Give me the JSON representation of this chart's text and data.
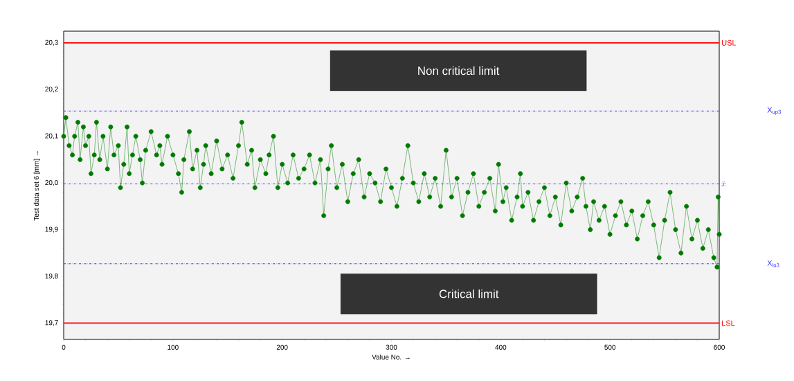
{
  "chart_data": {
    "type": "line",
    "xlabel": "Value No. →",
    "ylabel": "Test data set 6 [mm] →",
    "xlim": [
      0,
      600
    ],
    "xticks": [
      0,
      100,
      200,
      300,
      400,
      500,
      600
    ],
    "ylim": [
      19.665,
      20.325
    ],
    "yticks": [
      {
        "value": 19.7,
        "label": "19,7"
      },
      {
        "value": 19.8,
        "label": "19,8"
      },
      {
        "value": 19.9,
        "label": "19,9"
      },
      {
        "value": 20.0,
        "label": "20,0"
      },
      {
        "value": 20.1,
        "label": "20,1"
      },
      {
        "value": 20.2,
        "label": "20,2"
      },
      {
        "value": 20.3,
        "label": "20,3"
      }
    ],
    "marker": "circle",
    "line_style": "solid",
    "grid": false,
    "series": [
      {
        "color": "#007a00",
        "x": [
          0,
          2,
          5,
          8,
          10,
          13,
          15,
          18,
          20,
          23,
          25,
          28,
          30,
          33,
          36,
          40,
          43,
          46,
          50,
          52,
          55,
          58,
          60,
          63,
          66,
          70,
          72,
          75,
          80,
          85,
          88,
          90,
          95,
          100,
          105,
          108,
          110,
          115,
          118,
          122,
          125,
          128,
          130,
          135,
          140,
          145,
          150,
          155,
          160,
          163,
          168,
          172,
          175,
          180,
          185,
          188,
          192,
          196,
          200,
          205,
          210,
          215,
          220,
          225,
          230,
          235,
          238,
          242,
          245,
          250,
          255,
          260,
          265,
          270,
          275,
          280,
          285,
          290,
          295,
          300,
          305,
          310,
          315,
          320,
          325,
          330,
          335,
          340,
          345,
          350,
          355,
          360,
          365,
          370,
          375,
          380,
          385,
          390,
          395,
          398,
          402,
          405,
          410,
          415,
          418,
          420,
          425,
          430,
          435,
          440,
          445,
          450,
          455,
          460,
          465,
          470,
          475,
          478,
          482,
          485,
          490,
          495,
          500,
          505,
          510,
          515,
          520,
          525,
          530,
          535,
          540,
          545,
          550,
          555,
          560,
          565,
          570,
          575,
          580,
          585,
          590,
          595,
          598,
          599,
          600
        ],
        "values": [
          20.1,
          20.14,
          20.08,
          20.06,
          20.1,
          20.13,
          20.05,
          20.12,
          20.08,
          20.1,
          20.02,
          20.06,
          20.13,
          20.05,
          20.1,
          20.03,
          20.12,
          20.06,
          20.08,
          19.99,
          20.04,
          20.12,
          20.02,
          20.06,
          20.1,
          20.05,
          20.0,
          20.07,
          20.11,
          20.06,
          20.08,
          20.04,
          20.1,
          20.06,
          20.02,
          19.98,
          20.05,
          20.11,
          20.03,
          20.07,
          19.99,
          20.04,
          20.08,
          20.02,
          20.09,
          20.03,
          20.06,
          20.01,
          20.08,
          20.13,
          20.04,
          20.07,
          19.99,
          20.05,
          20.02,
          20.06,
          20.1,
          19.99,
          20.04,
          20.0,
          20.06,
          20.01,
          20.03,
          20.06,
          20.0,
          20.05,
          19.93,
          20.03,
          20.08,
          19.99,
          20.04,
          19.96,
          20.02,
          20.05,
          19.97,
          20.02,
          20.0,
          19.96,
          20.03,
          19.99,
          19.95,
          20.01,
          20.08,
          20.0,
          19.96,
          20.02,
          19.97,
          20.01,
          19.95,
          20.07,
          19.97,
          20.01,
          19.93,
          19.98,
          20.02,
          19.95,
          19.98,
          20.01,
          19.94,
          20.04,
          19.96,
          19.99,
          19.92,
          19.97,
          20.02,
          19.95,
          19.98,
          19.92,
          19.96,
          19.99,
          19.93,
          19.97,
          19.91,
          20.0,
          19.94,
          19.97,
          20.01,
          19.95,
          19.9,
          19.96,
          19.92,
          19.95,
          19.89,
          19.93,
          19.96,
          19.91,
          19.94,
          19.88,
          19.93,
          19.96,
          19.91,
          19.84,
          19.92,
          19.98,
          19.9,
          19.85,
          19.95,
          19.88,
          19.92,
          19.86,
          19.9,
          19.84,
          19.82,
          19.97,
          19.89
        ]
      }
    ],
    "ref_lines": [
      {
        "axis": "y",
        "value": 20.3,
        "label": "USL",
        "color": "#ff0000",
        "line_style": "solid"
      },
      {
        "axis": "y",
        "value": 20.154,
        "label": "X$_{up3}$",
        "color": "#3333ff",
        "line_style": "dashdot"
      },
      {
        "axis": "y",
        "value": 19.998,
        "label": "\\bar{x}",
        "color": "#3333ff",
        "line_style": "dashdot"
      },
      {
        "axis": "y",
        "value": 19.827,
        "label": "X$_{lo3}$",
        "color": "#3333ff",
        "line_style": "dashdot"
      },
      {
        "axis": "y",
        "value": 19.7,
        "label": "LSL",
        "color": "#ff0000",
        "line_style": "solid"
      }
    ],
    "annotations": [
      "Non critical limit",
      "Critical limit"
    ]
  }
}
